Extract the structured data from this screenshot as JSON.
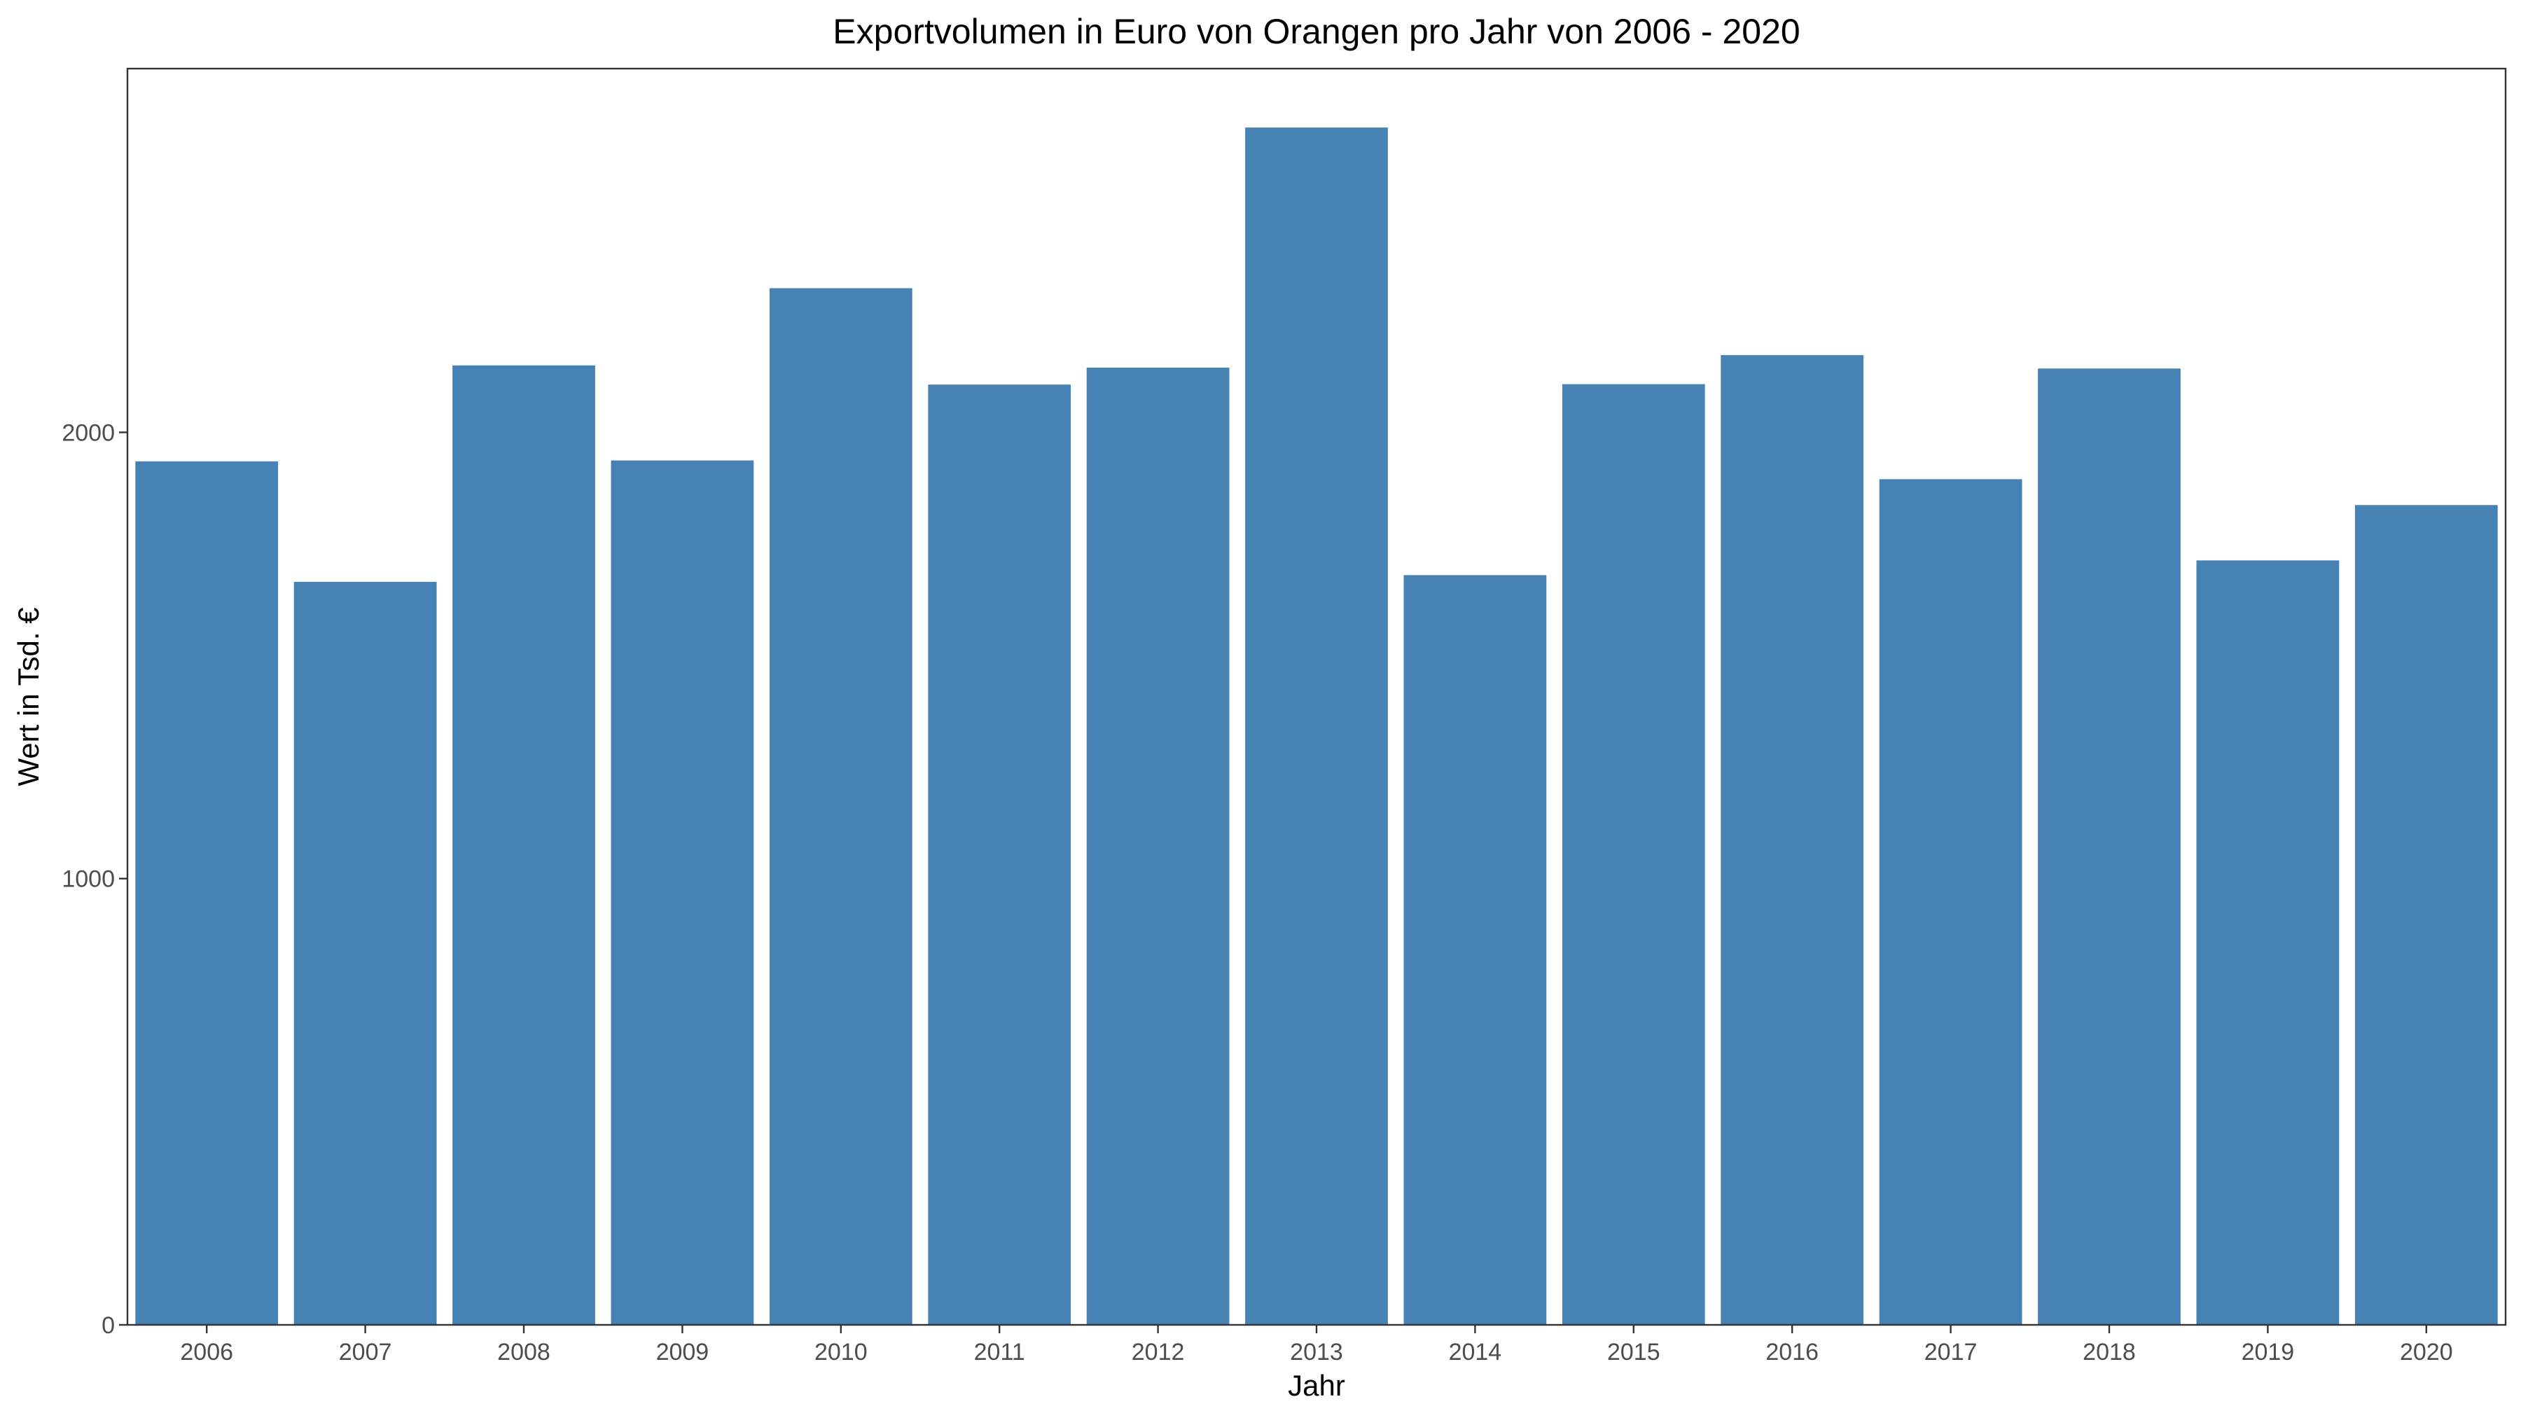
{
  "chart_data": {
    "type": "bar",
    "title": "Exportvolumen in Euro von Orangen pro Jahr von 2006 - 2020",
    "xlabel": "Jahr",
    "ylabel": "Wert in Tsd. €",
    "categories": [
      "2006",
      "2007",
      "2008",
      "2009",
      "2010",
      "2011",
      "2012",
      "2013",
      "2014",
      "2015",
      "2016",
      "2017",
      "2018",
      "2019",
      "2020"
    ],
    "values": [
      1935,
      1665,
      2150,
      1937,
      2323,
      2107,
      2145,
      2683,
      1680,
      2108,
      2173,
      1895,
      2143,
      1713,
      1837
    ],
    "ylim": [
      0,
      2815
    ],
    "yticks": [
      0,
      1000,
      2000
    ],
    "ytick_labels": [
      "0",
      "1000",
      "2000"
    ],
    "bar_color": "#4682B4",
    "grid": false,
    "legend": "none"
  }
}
